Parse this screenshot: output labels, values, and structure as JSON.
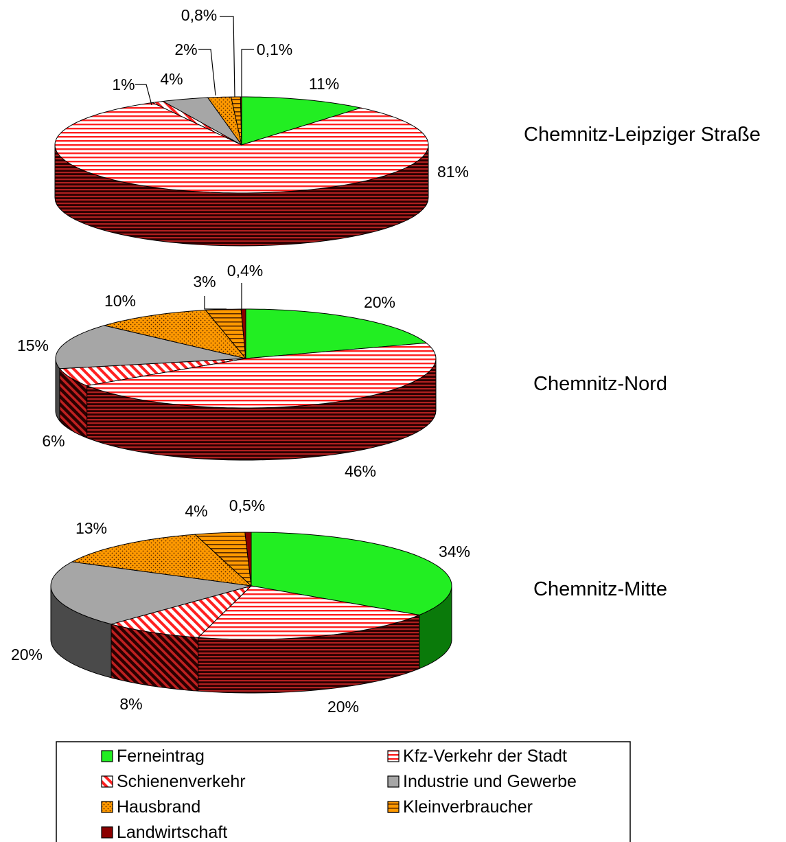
{
  "legend": [
    {
      "label": "Ferneintrag",
      "color": "#22ee22",
      "pattern": "solid"
    },
    {
      "label": "Kfz-Verkehr der Stadt",
      "color": "#ff2222",
      "pattern": "hlines"
    },
    {
      "label": "Schienenverkehr",
      "color": "#ff2222",
      "pattern": "diag"
    },
    {
      "label": "Industrie und Gewerbe",
      "color": "#a6a6a6",
      "pattern": "solid"
    },
    {
      "label": "Hausbrand",
      "color": "#ff9900",
      "pattern": "dots"
    },
    {
      "label": "Kleinverbraucher",
      "color": "#ff9900",
      "pattern": "hlines-dark"
    },
    {
      "label": "Landwirtschaft",
      "color": "#8b0000",
      "pattern": "solid"
    }
  ],
  "chart_data": [
    {
      "type": "pie",
      "title": "Chemnitz-Leipziger Straße",
      "categories": [
        "Ferneintrag",
        "Kfz-Verkehr der Stadt",
        "Schienenverkehr",
        "Industrie und Gewerbe",
        "Hausbrand",
        "Kleinverbraucher",
        "Landwirtschaft"
      ],
      "values": [
        11,
        81,
        1,
        4,
        2,
        0.8,
        0.1
      ],
      "labels": [
        "11%",
        "81%",
        "1%",
        "4%",
        "2%",
        "0,8%",
        "0,1%"
      ]
    },
    {
      "type": "pie",
      "title": "Chemnitz-Nord",
      "categories": [
        "Ferneintrag",
        "Kfz-Verkehr der Stadt",
        "Schienenverkehr",
        "Industrie und Gewerbe",
        "Hausbrand",
        "Kleinverbraucher",
        "Landwirtschaft"
      ],
      "values": [
        20,
        46,
        6,
        15,
        10,
        3,
        0.4
      ],
      "labels": [
        "20%",
        "46%",
        "6%",
        "15%",
        "10%",
        "3%",
        "0,4%"
      ]
    },
    {
      "type": "pie",
      "title": "Chemnitz-Mitte",
      "categories": [
        "Ferneintrag",
        "Kfz-Verkehr der Stadt",
        "Schienenverkehr",
        "Industrie und Gewerbe",
        "Hausbrand",
        "Kleinverbraucher",
        "Landwirtschaft"
      ],
      "values": [
        34,
        20,
        8,
        20,
        13,
        4,
        0.5
      ],
      "labels": [
        "34%",
        "20%",
        "8%",
        "20%",
        "13%",
        "4%",
        "0,5%"
      ]
    }
  ]
}
